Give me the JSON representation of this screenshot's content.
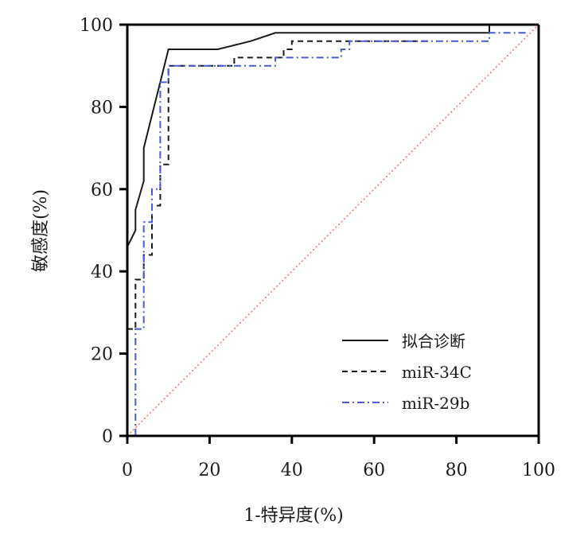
{
  "chart_data": {
    "type": "line",
    "title": "",
    "xlabel": "1-特异度(%)",
    "ylabel": "敏感度(%)",
    "xlim": [
      0,
      100
    ],
    "ylim": [
      0,
      100
    ],
    "xticks": [
      "0",
      "20",
      "40",
      "60",
      "80",
      "100"
    ],
    "yticks": [
      "0",
      "20",
      "40",
      "60",
      "80",
      "100"
    ],
    "grid": false,
    "legend_position": "bottom-right",
    "reference_line": {
      "x": [
        0,
        100
      ],
      "y": [
        0,
        100
      ],
      "color": "#e8796b",
      "style": "dotted"
    },
    "series": [
      {
        "name": "拟合诊断",
        "color": "#1a1a1a",
        "style": "solid",
        "x": [
          0,
          1,
          2,
          2,
          4,
          4,
          6,
          8,
          10,
          22,
          30,
          36,
          88,
          88,
          100
        ],
        "y": [
          46,
          48,
          50,
          55,
          62,
          70,
          78,
          86,
          94,
          94,
          96,
          98,
          98,
          100,
          100
        ]
      },
      {
        "name": "miR-34C",
        "color": "#1a1a1a",
        "style": "dashed",
        "x": [
          0,
          2,
          2,
          4,
          4,
          6,
          6,
          8,
          8,
          10,
          10,
          26,
          26,
          38,
          38,
          40,
          40,
          74
        ],
        "y": [
          26,
          26,
          38,
          38,
          44,
          44,
          56,
          56,
          66,
          66,
          90,
          90,
          92,
          92,
          94,
          94,
          96,
          96
        ]
      },
      {
        "name": "miR-29b",
        "color": "#4a5bd4",
        "style": "dashdot",
        "x": [
          2,
          2,
          4,
          4,
          6,
          6,
          8,
          8,
          10,
          10,
          36,
          36,
          52,
          52,
          54,
          54,
          62,
          88,
          88,
          97
        ],
        "y": [
          0,
          26,
          26,
          52,
          52,
          60,
          60,
          86,
          86,
          90,
          90,
          92,
          92,
          94,
          94,
          96,
          96,
          96,
          98,
          98
        ]
      }
    ]
  }
}
